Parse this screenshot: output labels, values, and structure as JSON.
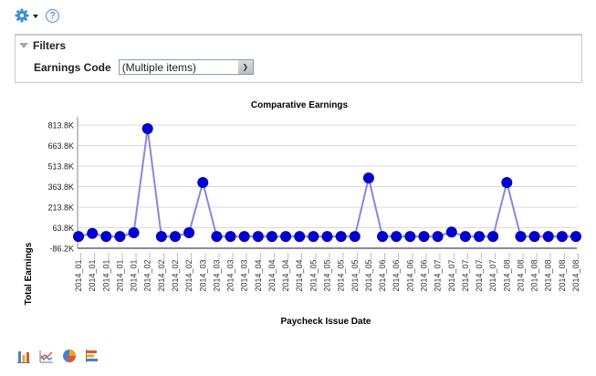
{
  "toolbar": {
    "gear_icon": "gear-icon",
    "menu_caret": "caret-down-icon",
    "help_label": "?"
  },
  "filters": {
    "title": "Filters",
    "earnings_code_label": "Earnings Code",
    "earnings_code_value": "(Multiple items)"
  },
  "chart_data": {
    "type": "line",
    "title": "Comparative Earnings",
    "xlabel": "Paycheck Issue Date",
    "ylabel": "Total Earnings",
    "ylim": [
      -86.2,
      813.8
    ],
    "yticks": [
      "-86.2K",
      "63.8K",
      "213.8K",
      "363.8K",
      "513.8K",
      "663.8K",
      "813.8K"
    ],
    "grid": true,
    "legend": "none",
    "categories": [
      "2014_01...",
      "2014_01...",
      "2014_01...",
      "2014_01...",
      "2014_01...",
      "2014_02...",
      "2014_02...",
      "2014_02...",
      "2014_02...",
      "2014_03...",
      "2014_03...",
      "2014_03...",
      "2014_03...",
      "2014_04...",
      "2014_04...",
      "2014_04...",
      "2014_04...",
      "2014_05...",
      "2014_05...",
      "2014_05...",
      "2014_05...",
      "2014_05...",
      "2014_06...",
      "2014_06...",
      "2014_06...",
      "2014_06...",
      "2014_07...",
      "2014_07...",
      "2014_07...",
      "2014_07...",
      "2014_07...",
      "2014_08...",
      "2014_08...",
      "2014_08...",
      "2014_08...",
      "2014_08...",
      "2014_08..."
    ],
    "series": [
      {
        "name": "Total Earnings",
        "color": "#0000cc",
        "line_color": "#8888dd",
        "values": [
          0,
          22,
          0,
          0,
          27,
          787,
          0,
          0,
          27,
          394,
          0,
          0,
          0,
          0,
          0,
          0,
          0,
          0,
          0,
          0,
          0,
          427,
          0,
          0,
          0,
          0,
          0,
          32,
          0,
          0,
          0,
          394,
          0,
          0,
          0,
          0,
          0
        ]
      }
    ]
  },
  "chart_type_icons": [
    "bar-chart-icon",
    "line-chart-icon",
    "pie-chart-icon",
    "horizontal-bar-chart-icon"
  ]
}
